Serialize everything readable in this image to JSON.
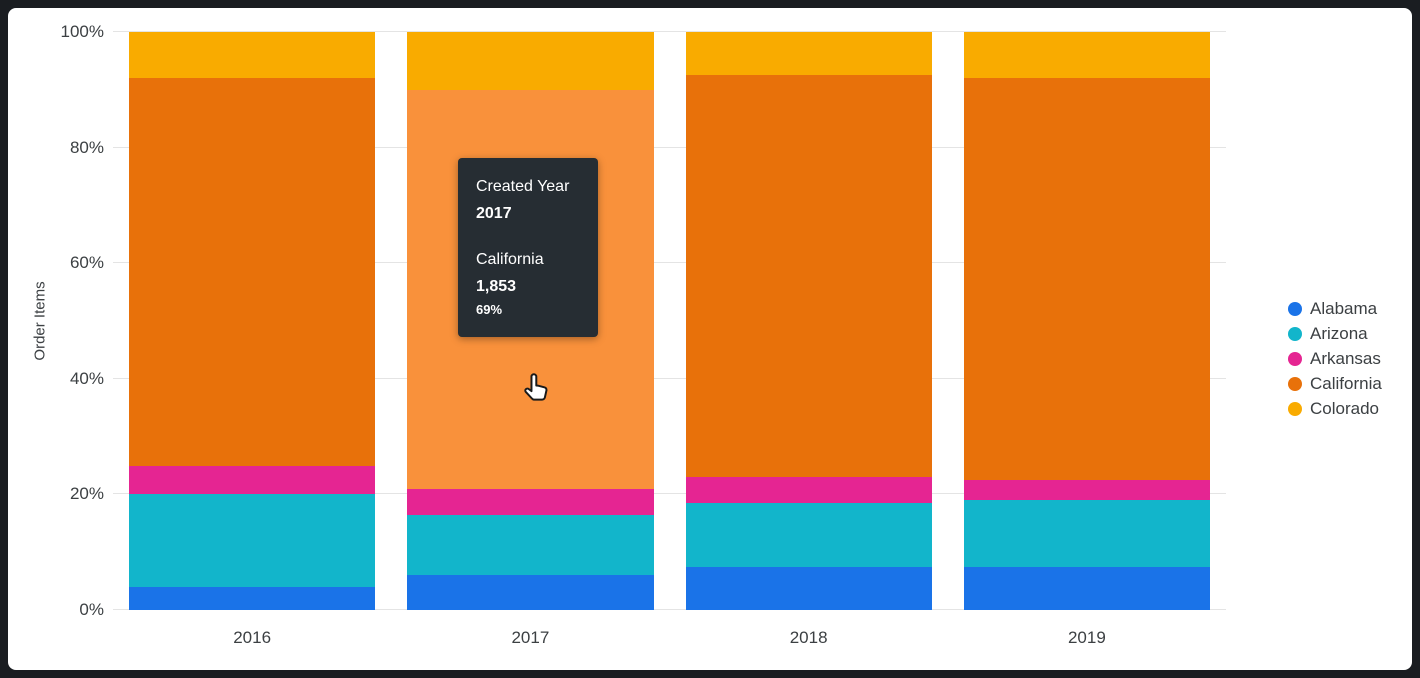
{
  "chart_data": {
    "type": "bar",
    "stacking": "percent",
    "title": "",
    "xlabel": "",
    "ylabel": "Order Items",
    "x_field": "Created Year",
    "categories": [
      "2016",
      "2017",
      "2018",
      "2019"
    ],
    "series": [
      {
        "name": "Alabama",
        "color": "#1A73E8",
        "values": [
          4,
          6,
          7.5,
          7.5
        ]
      },
      {
        "name": "Arizona",
        "color": "#12B5CB",
        "values": [
          16,
          10.5,
          11,
          11.5
        ]
      },
      {
        "name": "Arkansas",
        "color": "#E52592",
        "values": [
          5,
          4.5,
          4.5,
          3.5
        ]
      },
      {
        "name": "California",
        "color": "#E8710A",
        "values": [
          67,
          69,
          69.5,
          69.5
        ]
      },
      {
        "name": "Colorado",
        "color": "#F9AB00",
        "values": [
          8,
          10,
          7.5,
          8
        ]
      }
    ],
    "y_ticks": [
      "0%",
      "20%",
      "40%",
      "60%",
      "80%",
      "100%"
    ],
    "ylim": [
      0,
      100
    ],
    "grid": true,
    "legend_position": "right",
    "highlighted": {
      "category": "2017",
      "series": "California",
      "highlight_color": "#F9913B"
    }
  },
  "tooltip": {
    "dimension_label": "Created Year",
    "dimension_value": "2017",
    "series_label": "California",
    "value": "1,853",
    "percent": "69%"
  },
  "colors": {
    "frame": "#1a1d21",
    "card_background": "#ffffff",
    "gridline": "#e4e4e4",
    "axis_text": "#3c4043",
    "tooltip_background": "#262d33"
  }
}
